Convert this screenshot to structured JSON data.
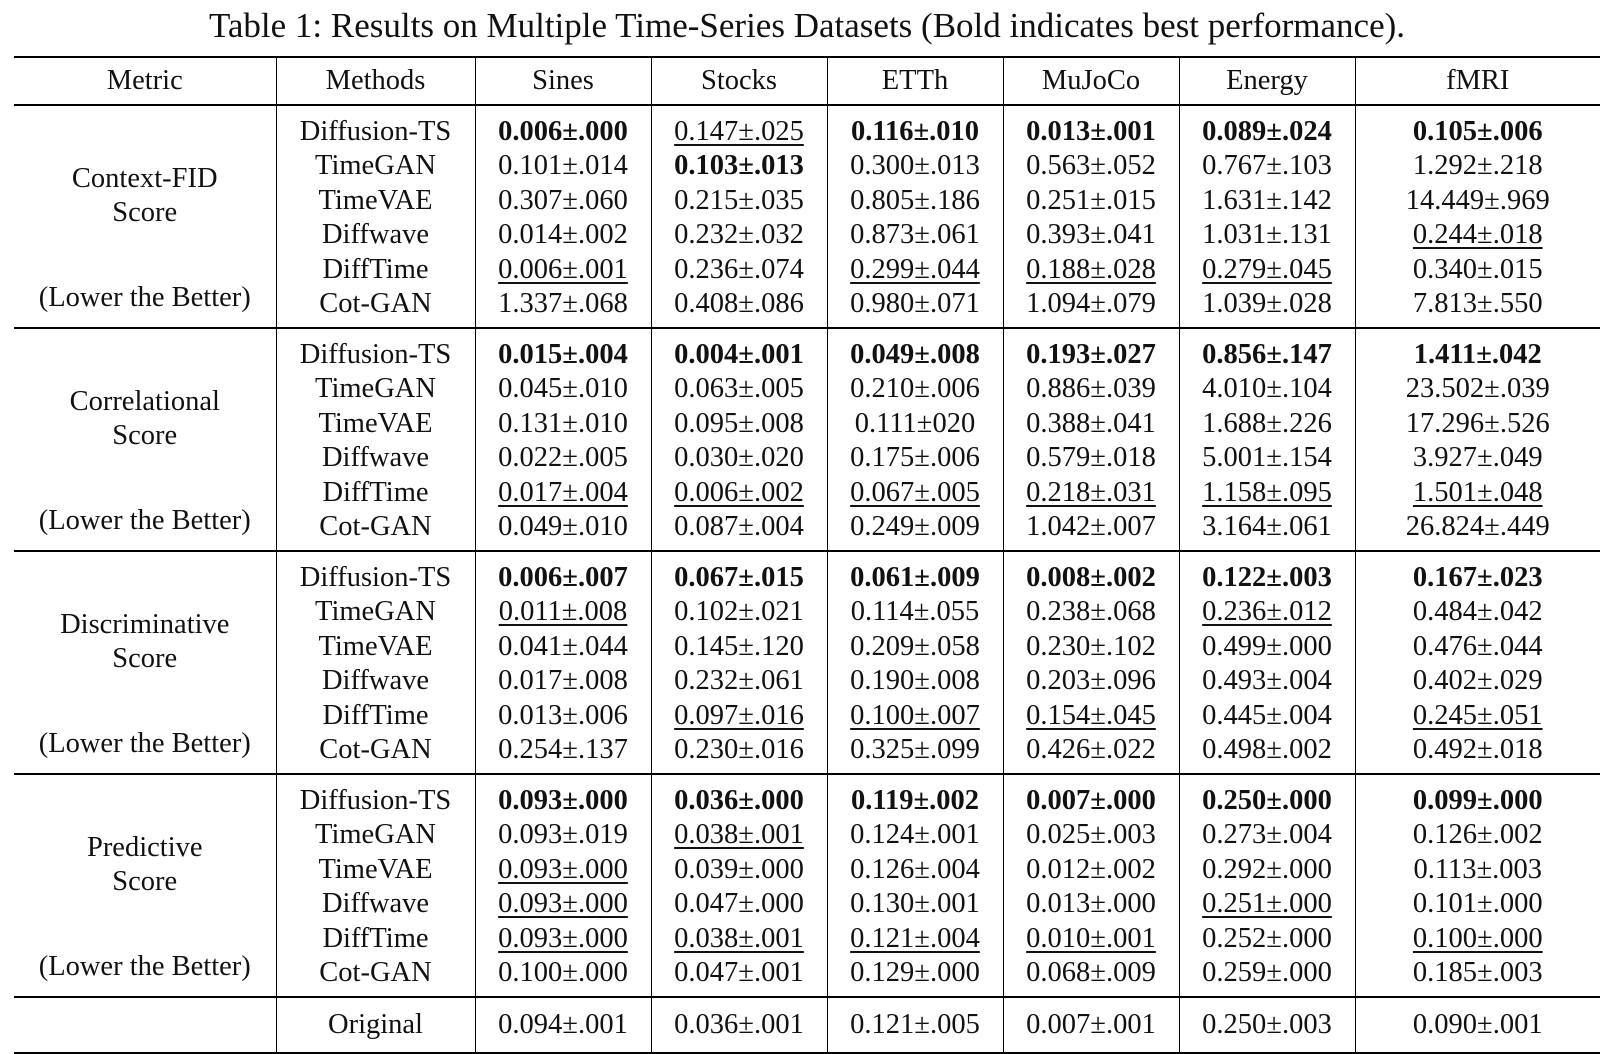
{
  "caption": "Table 1: Results on Multiple Time-Series Datasets (Bold indicates best performance).",
  "headers": [
    "Metric",
    "Methods",
    "Sines",
    "Stocks",
    "ETTh",
    "MuJoCo",
    "Energy",
    "fMRI"
  ],
  "groups": [
    {
      "metric": "Context-FID Score",
      "metric_lines": [
        "Context-FID",
        "Score"
      ],
      "note": "(Lower the Better)",
      "rows": [
        {
          "method": "Diffusion-TS",
          "cells": [
            {
              "v": "0.006±.000",
              "s": "best"
            },
            {
              "v": "0.147±.025",
              "s": "second"
            },
            {
              "v": "0.116±.010",
              "s": "best"
            },
            {
              "v": "0.013±.001",
              "s": "best"
            },
            {
              "v": "0.089±.024",
              "s": "best"
            },
            {
              "v": "0.105±.006",
              "s": "best"
            }
          ]
        },
        {
          "method": "TimeGAN",
          "cells": [
            {
              "v": "0.101±.014",
              "s": ""
            },
            {
              "v": "0.103±.013",
              "s": "best"
            },
            {
              "v": "0.300±.013",
              "s": ""
            },
            {
              "v": "0.563±.052",
              "s": ""
            },
            {
              "v": "0.767±.103",
              "s": ""
            },
            {
              "v": "1.292±.218",
              "s": ""
            }
          ]
        },
        {
          "method": "TimeVAE",
          "cells": [
            {
              "v": "0.307±.060",
              "s": ""
            },
            {
              "v": "0.215±.035",
              "s": ""
            },
            {
              "v": "0.805±.186",
              "s": ""
            },
            {
              "v": "0.251±.015",
              "s": ""
            },
            {
              "v": "1.631±.142",
              "s": ""
            },
            {
              "v": "14.449±.969",
              "s": ""
            }
          ]
        },
        {
          "method": "Diffwave",
          "cells": [
            {
              "v": "0.014±.002",
              "s": ""
            },
            {
              "v": "0.232±.032",
              "s": ""
            },
            {
              "v": "0.873±.061",
              "s": ""
            },
            {
              "v": "0.393±.041",
              "s": ""
            },
            {
              "v": "1.031±.131",
              "s": ""
            },
            {
              "v": "0.244±.018",
              "s": "second"
            }
          ]
        },
        {
          "method": "DiffTime",
          "cells": [
            {
              "v": "0.006±.001",
              "s": "second"
            },
            {
              "v": "0.236±.074",
              "s": ""
            },
            {
              "v": "0.299±.044",
              "s": "second"
            },
            {
              "v": "0.188±.028",
              "s": "second"
            },
            {
              "v": "0.279±.045",
              "s": "second"
            },
            {
              "v": "0.340±.015",
              "s": ""
            }
          ]
        },
        {
          "method": "Cot-GAN",
          "cells": [
            {
              "v": "1.337±.068",
              "s": ""
            },
            {
              "v": "0.408±.086",
              "s": ""
            },
            {
              "v": "0.980±.071",
              "s": ""
            },
            {
              "v": "1.094±.079",
              "s": ""
            },
            {
              "v": "1.039±.028",
              "s": ""
            },
            {
              "v": "7.813±.550",
              "s": ""
            }
          ]
        }
      ]
    },
    {
      "metric": "Correlational Score",
      "metric_lines": [
        "Correlational",
        "Score"
      ],
      "note": "(Lower the Better)",
      "rows": [
        {
          "method": "Diffusion-TS",
          "cells": [
            {
              "v": "0.015±.004",
              "s": "best"
            },
            {
              "v": "0.004±.001",
              "s": "best"
            },
            {
              "v": "0.049±.008",
              "s": "best"
            },
            {
              "v": "0.193±.027",
              "s": "best"
            },
            {
              "v": "0.856±.147",
              "s": "best"
            },
            {
              "v": "1.411±.042",
              "s": "best"
            }
          ]
        },
        {
          "method": "TimeGAN",
          "cells": [
            {
              "v": "0.045±.010",
              "s": ""
            },
            {
              "v": "0.063±.005",
              "s": ""
            },
            {
              "v": "0.210±.006",
              "s": ""
            },
            {
              "v": "0.886±.039",
              "s": ""
            },
            {
              "v": "4.010±.104",
              "s": ""
            },
            {
              "v": "23.502±.039",
              "s": ""
            }
          ]
        },
        {
          "method": "TimeVAE",
          "cells": [
            {
              "v": "0.131±.010",
              "s": ""
            },
            {
              "v": "0.095±.008",
              "s": ""
            },
            {
              "v": "0.111±020",
              "s": ""
            },
            {
              "v": "0.388±.041",
              "s": ""
            },
            {
              "v": "1.688±.226",
              "s": ""
            },
            {
              "v": "17.296±.526",
              "s": ""
            }
          ]
        },
        {
          "method": "Diffwave",
          "cells": [
            {
              "v": "0.022±.005",
              "s": ""
            },
            {
              "v": "0.030±.020",
              "s": ""
            },
            {
              "v": "0.175±.006",
              "s": ""
            },
            {
              "v": "0.579±.018",
              "s": ""
            },
            {
              "v": "5.001±.154",
              "s": ""
            },
            {
              "v": "3.927±.049",
              "s": ""
            }
          ]
        },
        {
          "method": "DiffTime",
          "cells": [
            {
              "v": "0.017±.004",
              "s": "second"
            },
            {
              "v": "0.006±.002",
              "s": "second"
            },
            {
              "v": "0.067±.005",
              "s": "second"
            },
            {
              "v": "0.218±.031",
              "s": "second"
            },
            {
              "v": "1.158±.095",
              "s": "second"
            },
            {
              "v": "1.501±.048",
              "s": "second"
            }
          ]
        },
        {
          "method": "Cot-GAN",
          "cells": [
            {
              "v": "0.049±.010",
              "s": ""
            },
            {
              "v": "0.087±.004",
              "s": ""
            },
            {
              "v": "0.249±.009",
              "s": ""
            },
            {
              "v": "1.042±.007",
              "s": ""
            },
            {
              "v": "3.164±.061",
              "s": ""
            },
            {
              "v": "26.824±.449",
              "s": ""
            }
          ]
        }
      ]
    },
    {
      "metric": "Discriminative Score",
      "metric_lines": [
        "Discriminative",
        "Score"
      ],
      "note": "(Lower the Better)",
      "rows": [
        {
          "method": "Diffusion-TS",
          "cells": [
            {
              "v": "0.006±.007",
              "s": "best"
            },
            {
              "v": "0.067±.015",
              "s": "best"
            },
            {
              "v": "0.061±.009",
              "s": "best"
            },
            {
              "v": "0.008±.002",
              "s": "best"
            },
            {
              "v": "0.122±.003",
              "s": "best"
            },
            {
              "v": "0.167±.023",
              "s": "best"
            }
          ]
        },
        {
          "method": "TimeGAN",
          "cells": [
            {
              "v": "0.011±.008",
              "s": "second"
            },
            {
              "v": "0.102±.021",
              "s": ""
            },
            {
              "v": "0.114±.055",
              "s": ""
            },
            {
              "v": "0.238±.068",
              "s": ""
            },
            {
              "v": "0.236±.012",
              "s": "second"
            },
            {
              "v": "0.484±.042",
              "s": ""
            }
          ]
        },
        {
          "method": "TimeVAE",
          "cells": [
            {
              "v": "0.041±.044",
              "s": ""
            },
            {
              "v": "0.145±.120",
              "s": ""
            },
            {
              "v": "0.209±.058",
              "s": ""
            },
            {
              "v": "0.230±.102",
              "s": ""
            },
            {
              "v": "0.499±.000",
              "s": ""
            },
            {
              "v": "0.476±.044",
              "s": ""
            }
          ]
        },
        {
          "method": "Diffwave",
          "cells": [
            {
              "v": "0.017±.008",
              "s": ""
            },
            {
              "v": "0.232±.061",
              "s": ""
            },
            {
              "v": "0.190±.008",
              "s": ""
            },
            {
              "v": "0.203±.096",
              "s": ""
            },
            {
              "v": "0.493±.004",
              "s": ""
            },
            {
              "v": "0.402±.029",
              "s": ""
            }
          ]
        },
        {
          "method": "DiffTime",
          "cells": [
            {
              "v": "0.013±.006",
              "s": ""
            },
            {
              "v": "0.097±.016",
              "s": "second"
            },
            {
              "v": "0.100±.007",
              "s": "second"
            },
            {
              "v": "0.154±.045",
              "s": "second"
            },
            {
              "v": "0.445±.004",
              "s": ""
            },
            {
              "v": "0.245±.051",
              "s": "second"
            }
          ]
        },
        {
          "method": "Cot-GAN",
          "cells": [
            {
              "v": "0.254±.137",
              "s": ""
            },
            {
              "v": "0.230±.016",
              "s": ""
            },
            {
              "v": "0.325±.099",
              "s": ""
            },
            {
              "v": "0.426±.022",
              "s": ""
            },
            {
              "v": "0.498±.002",
              "s": ""
            },
            {
              "v": "0.492±.018",
              "s": ""
            }
          ]
        }
      ]
    },
    {
      "metric": "Predictive Score",
      "metric_lines": [
        "Predictive",
        "Score"
      ],
      "note": "(Lower the Better)",
      "rows": [
        {
          "method": "Diffusion-TS",
          "cells": [
            {
              "v": "0.093±.000",
              "s": "best"
            },
            {
              "v": "0.036±.000",
              "s": "best"
            },
            {
              "v": "0.119±.002",
              "s": "best"
            },
            {
              "v": "0.007±.000",
              "s": "best"
            },
            {
              "v": "0.250±.000",
              "s": "best"
            },
            {
              "v": "0.099±.000",
              "s": "best"
            }
          ]
        },
        {
          "method": "TimeGAN",
          "cells": [
            {
              "v": "0.093±.019",
              "s": ""
            },
            {
              "v": "0.038±.001",
              "s": "second"
            },
            {
              "v": "0.124±.001",
              "s": ""
            },
            {
              "v": "0.025±.003",
              "s": ""
            },
            {
              "v": "0.273±.004",
              "s": ""
            },
            {
              "v": "0.126±.002",
              "s": ""
            }
          ]
        },
        {
          "method": "TimeVAE",
          "cells": [
            {
              "v": "0.093±.000",
              "s": "second"
            },
            {
              "v": "0.039±.000",
              "s": ""
            },
            {
              "v": "0.126±.004",
              "s": ""
            },
            {
              "v": "0.012±.002",
              "s": ""
            },
            {
              "v": "0.292±.000",
              "s": ""
            },
            {
              "v": "0.113±.003",
              "s": ""
            }
          ]
        },
        {
          "method": "Diffwave",
          "cells": [
            {
              "v": "0.093±.000",
              "s": "second"
            },
            {
              "v": "0.047±.000",
              "s": ""
            },
            {
              "v": "0.130±.001",
              "s": ""
            },
            {
              "v": "0.013±.000",
              "s": ""
            },
            {
              "v": "0.251±.000",
              "s": "second"
            },
            {
              "v": "0.101±.000",
              "s": ""
            }
          ]
        },
        {
          "method": "DiffTime",
          "cells": [
            {
              "v": "0.093±.000",
              "s": "second"
            },
            {
              "v": "0.038±.001",
              "s": "second"
            },
            {
              "v": "0.121±.004",
              "s": "second"
            },
            {
              "v": "0.010±.001",
              "s": "second"
            },
            {
              "v": "0.252±.000",
              "s": ""
            },
            {
              "v": "0.100±.000",
              "s": "second"
            }
          ]
        },
        {
          "method": "Cot-GAN",
          "cells": [
            {
              "v": "0.100±.000",
              "s": ""
            },
            {
              "v": "0.047±.001",
              "s": ""
            },
            {
              "v": "0.129±.000",
              "s": ""
            },
            {
              "v": "0.068±.009",
              "s": ""
            },
            {
              "v": "0.259±.000",
              "s": ""
            },
            {
              "v": "0.185±.003",
              "s": ""
            }
          ]
        }
      ]
    }
  ],
  "original": {
    "method": "Original",
    "cells": [
      "0.094±.001",
      "0.036±.001",
      "0.121±.005",
      "0.007±.001",
      "0.250±.003",
      "0.090±.001"
    ]
  }
}
